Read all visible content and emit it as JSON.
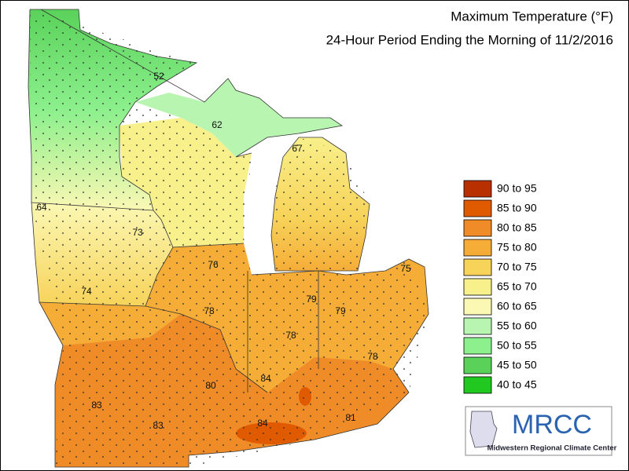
{
  "header": {
    "title": "Maximum Temperature (°F)",
    "subtitle": "24-Hour Period Ending the Morning of 11/2/2016"
  },
  "legend": [
    {
      "label": "90 to 95",
      "color": "#b83000"
    },
    {
      "label": "85 to 90",
      "color": "#e05a00"
    },
    {
      "label": "80 to 85",
      "color": "#f08c28"
    },
    {
      "label": "75 to 80",
      "color": "#f5ad38"
    },
    {
      "label": "70 to 75",
      "color": "#f7d35a"
    },
    {
      "label": "65 to 70",
      "color": "#f8f08a"
    },
    {
      "label": "60 to 65",
      "color": "#fbf8b4"
    },
    {
      "label": "55 to 60",
      "color": "#b8f5b0"
    },
    {
      "label": "50 to 55",
      "color": "#8cf08c"
    },
    {
      "label": "45 to 50",
      "color": "#5ad25a"
    },
    {
      "label": "40 to 45",
      "color": "#20c820"
    }
  ],
  "map_labels": [
    52,
    62,
    67,
    64,
    73,
    76,
    75,
    74,
    79,
    79,
    78,
    78,
    78,
    80,
    84,
    83,
    83,
    84,
    81
  ],
  "logo": {
    "name": "MRCC",
    "subtitle": "Midwestern Regional Climate Center"
  }
}
